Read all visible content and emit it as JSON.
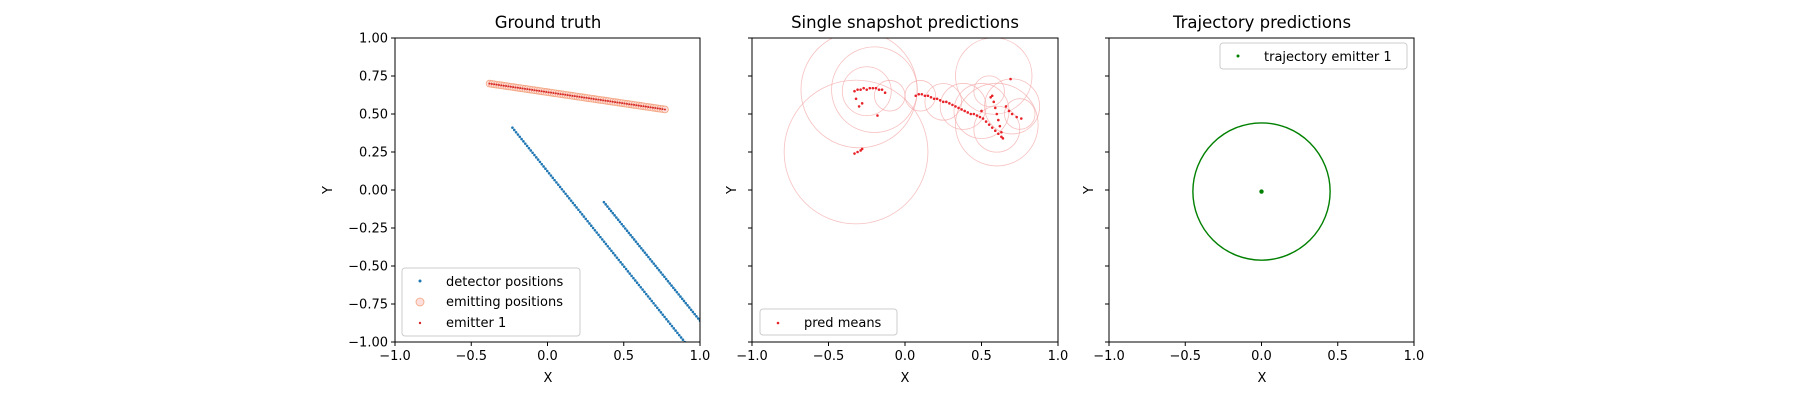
{
  "chart_data": [
    {
      "type": "scatter",
      "title": "Ground truth",
      "xlabel": "X",
      "ylabel": "Y",
      "xlim": [
        -1.0,
        1.0
      ],
      "ylim": [
        -1.0,
        1.0
      ],
      "xticks": [
        "−1.0",
        "−0.5",
        "0.0",
        "0.5",
        "1.0"
      ],
      "yticks": [
        "−1.00",
        "−0.75",
        "−0.50",
        "−0.25",
        "0.00",
        "0.25",
        "0.50",
        "0.75",
        "1.00"
      ],
      "legend_position": "lower-left",
      "series": [
        {
          "name": "detector positions",
          "color": "#1f77b4",
          "segments": [
            {
              "from": [
                -0.23,
                0.41
              ],
              "to": [
                0.9,
                -1.0
              ],
              "count": 95
            },
            {
              "from": [
                0.37,
                -0.08
              ],
              "to": [
                1.0,
                -0.86
              ],
              "count": 55
            }
          ]
        },
        {
          "name": "emitting positions",
          "color": "#f4a582",
          "style": "hollow-circle",
          "segments": [
            {
              "from": [
                -0.38,
                0.7
              ],
              "to": [
                0.77,
                0.53
              ],
              "count": 75
            }
          ]
        },
        {
          "name": "emitter 1",
          "color": "#d62728",
          "segments": [
            {
              "from": [
                -0.38,
                0.7
              ],
              "to": [
                0.77,
                0.53
              ],
              "count": 75
            }
          ]
        }
      ]
    },
    {
      "type": "scatter",
      "title": "Single snapshot predictions",
      "xlabel": "X",
      "ylabel": "Y",
      "xlim": [
        -1.0,
        1.0
      ],
      "ylim": [
        -1.0,
        1.0
      ],
      "xticks": [
        "−1.0",
        "−0.5",
        "0.0",
        "0.5",
        "1.0"
      ],
      "legend_position": "lower-left",
      "series": [
        {
          "name": "pred means",
          "color": "#e8242a",
          "points": [
            [
              -0.33,
              0.65
            ],
            [
              -0.31,
              0.66
            ],
            [
              -0.29,
              0.66
            ],
            [
              -0.27,
              0.67
            ],
            [
              -0.25,
              0.66
            ],
            [
              -0.23,
              0.67
            ],
            [
              -0.21,
              0.67
            ],
            [
              -0.19,
              0.67
            ],
            [
              -0.17,
              0.66
            ],
            [
              -0.15,
              0.66
            ],
            [
              -0.13,
              0.64
            ],
            [
              -0.32,
              0.6
            ],
            [
              -0.28,
              0.57
            ],
            [
              -0.18,
              0.49
            ],
            [
              -0.3,
              0.55
            ],
            [
              0.07,
              0.62
            ],
            [
              0.09,
              0.63
            ],
            [
              0.11,
              0.63
            ],
            [
              0.13,
              0.62
            ],
            [
              0.15,
              0.62
            ],
            [
              0.17,
              0.61
            ],
            [
              0.19,
              0.6
            ],
            [
              0.21,
              0.6
            ],
            [
              0.23,
              0.59
            ],
            [
              0.25,
              0.58
            ],
            [
              0.27,
              0.58
            ],
            [
              0.29,
              0.57
            ],
            [
              0.31,
              0.56
            ],
            [
              0.33,
              0.55
            ],
            [
              0.35,
              0.54
            ],
            [
              0.37,
              0.53
            ],
            [
              0.39,
              0.52
            ],
            [
              0.41,
              0.51
            ],
            [
              0.43,
              0.5
            ],
            [
              0.45,
              0.5
            ],
            [
              0.47,
              0.49
            ],
            [
              0.49,
              0.48
            ],
            [
              0.51,
              0.47
            ],
            [
              0.53,
              0.45
            ],
            [
              0.55,
              0.43
            ],
            [
              0.57,
              0.41
            ],
            [
              0.59,
              0.39
            ],
            [
              0.61,
              0.37
            ],
            [
              0.63,
              0.35
            ],
            [
              0.64,
              0.34
            ],
            [
              0.57,
              0.62
            ],
            [
              0.58,
              0.58
            ],
            [
              0.59,
              0.54
            ],
            [
              0.6,
              0.5
            ],
            [
              0.61,
              0.46
            ],
            [
              0.62,
              0.42
            ],
            [
              0.63,
              0.38
            ],
            [
              0.66,
              0.55
            ],
            [
              0.68,
              0.52
            ],
            [
              0.7,
              0.5
            ],
            [
              0.73,
              0.48
            ],
            [
              0.76,
              0.47
            ],
            [
              0.69,
              0.73
            ],
            [
              0.56,
              0.61
            ],
            [
              0.5,
              0.52
            ],
            [
              -0.33,
              0.24
            ],
            [
              -0.31,
              0.25
            ],
            [
              -0.29,
              0.26
            ],
            [
              -0.28,
              0.27
            ]
          ]
        }
      ],
      "uncertainty_circles": {
        "color": "#f4a5a5",
        "circles": [
          {
            "center": [
              -0.2,
              0.66
            ],
            "radius": 0.28
          },
          {
            "center": [
              -0.3,
              0.66
            ],
            "radius": 0.38
          },
          {
            "center": [
              -0.25,
              0.65
            ],
            "radius": 0.16
          },
          {
            "center": [
              -0.32,
              0.25
            ],
            "radius": 0.47
          },
          {
            "center": [
              -0.1,
              0.62
            ],
            "radius": 0.1
          },
          {
            "center": [
              0.1,
              0.62
            ],
            "radius": 0.1
          },
          {
            "center": [
              0.25,
              0.58
            ],
            "radius": 0.12
          },
          {
            "center": [
              0.38,
              0.55
            ],
            "radius": 0.15
          },
          {
            "center": [
              0.5,
              0.52
            ],
            "radius": 0.18
          },
          {
            "center": [
              0.6,
              0.43
            ],
            "radius": 0.27
          },
          {
            "center": [
              0.7,
              0.55
            ],
            "radius": 0.18
          },
          {
            "center": [
              0.6,
              0.4
            ],
            "radius": 0.15
          },
          {
            "center": [
              0.55,
              0.65
            ],
            "radius": 0.1
          },
          {
            "center": [
              0.58,
              0.75
            ],
            "radius": 0.25
          },
          {
            "center": [
              0.75,
              0.5
            ],
            "radius": 0.1
          }
        ]
      }
    },
    {
      "type": "scatter",
      "title": "Trajectory predictions",
      "xlabel": "X",
      "ylabel": "Y",
      "xlim": [
        -1.0,
        1.0
      ],
      "ylim": [
        -1.0,
        1.0
      ],
      "xticks": [
        "−1.0",
        "−0.5",
        "0.0",
        "0.5",
        "1.0"
      ],
      "legend_position": "upper-right",
      "series": [
        {
          "name": "trajectory emitter 1",
          "color": "#008000",
          "points": [
            [
              0.0,
              -0.01
            ]
          ]
        }
      ],
      "uncertainty_circles": {
        "color": "#008000",
        "circles": [
          {
            "center": [
              0.0,
              -0.01
            ],
            "radius": 0.45
          }
        ]
      }
    }
  ]
}
